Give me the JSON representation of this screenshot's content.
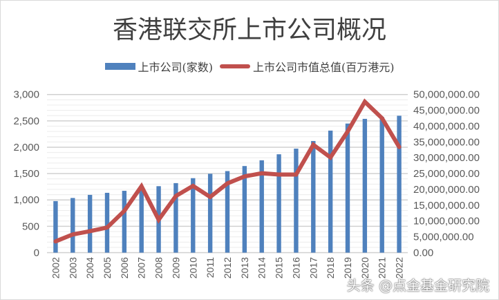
{
  "chart_data": {
    "type": "bar+line",
    "title": "香港联交所上市公司概况",
    "categories": [
      "2002",
      "2003",
      "2004",
      "2005",
      "2006",
      "2007",
      "2008",
      "2009",
      "2010",
      "2011",
      "2012",
      "2013",
      "2014",
      "2015",
      "2016",
      "2017",
      "2018",
      "2019",
      "2020",
      "2021",
      "2022"
    ],
    "series": [
      {
        "name": "上市公司(家数)",
        "type": "bar",
        "axis": "left",
        "color": "#4f81bd",
        "values": [
          978,
          1037,
          1096,
          1135,
          1173,
          1241,
          1261,
          1319,
          1413,
          1496,
          1547,
          1643,
          1752,
          1866,
          1973,
          2118,
          2315,
          2449,
          2538,
          2572,
          2597
        ]
      },
      {
        "name": "上市公司市值总值(百万港元)",
        "type": "line",
        "axis": "right",
        "color": "#c0504d",
        "values": [
          3560000,
          5760000,
          6780000,
          7940000,
          13200000,
          21000000,
          10400000,
          17900000,
          21100000,
          17600000,
          21900000,
          24100000,
          25100000,
          24700000,
          24700000,
          34100000,
          30100000,
          38300000,
          47700000,
          42500000,
          33400000
        ]
      }
    ],
    "left_axis": {
      "ylim": [
        0,
        3000
      ],
      "ticks": [
        "0",
        "500",
        "1,000",
        "1,500",
        "2,000",
        "2,500",
        "3,000"
      ]
    },
    "right_axis": {
      "ylim": [
        0,
        50000000
      ],
      "ticks": [
        "0.00",
        "5,000,000.00",
        "10,000,000.00",
        "15,000,000.00",
        "20,000,000.00",
        "25,000,000.00",
        "30,000,000.00",
        "35,000,000.00",
        "40,000,000.00",
        "45,000,000.00",
        "50,000,000.00"
      ]
    },
    "grid": true,
    "legend_placement": "top"
  },
  "watermark": "头条 @点金基金研究院"
}
